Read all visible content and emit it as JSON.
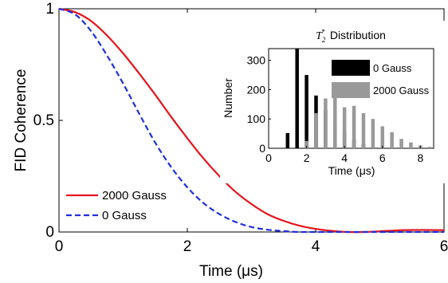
{
  "chart_data": [
    {
      "type": "line",
      "xlabel": "Time (μs)",
      "ylabel": "FID Coherence",
      "xlim": [
        0,
        6
      ],
      "ylim": [
        0,
        1
      ],
      "xticks": [
        "0",
        "2",
        "4",
        "6"
      ],
      "xtick_values": [
        0,
        2,
        4,
        6
      ],
      "yticks": [
        "0",
        "0.5",
        "1"
      ],
      "ytick_values": [
        0,
        0.5,
        1
      ],
      "grid": false,
      "legend_position": "bottom-left",
      "series": [
        {
          "name": "2000 Gauss",
          "color": "#e8141b",
          "style": "solid",
          "x": [
            0,
            0.25,
            0.5,
            0.75,
            1.0,
            1.25,
            1.5,
            1.75,
            2.0,
            2.25,
            2.5,
            2.75,
            3.0,
            3.25,
            3.5,
            3.75,
            4.0,
            4.25,
            4.5,
            4.75,
            5.0,
            5.25,
            5.5,
            5.75,
            6.0
          ],
          "values": [
            1.0,
            0.985,
            0.945,
            0.88,
            0.8,
            0.71,
            0.615,
            0.515,
            0.42,
            0.33,
            0.25,
            0.18,
            0.125,
            0.08,
            0.05,
            0.028,
            0.014,
            0.005,
            0.0,
            0.0,
            0.003,
            0.007,
            0.009,
            0.009,
            0.008
          ]
        },
        {
          "name": "0 Gauss",
          "color": "#1f2fe0",
          "style": "dashed",
          "x": [
            0,
            0.25,
            0.5,
            0.75,
            1.0,
            1.25,
            1.5,
            1.75,
            2.0,
            2.25,
            2.5,
            2.75,
            3.0,
            3.25,
            3.5,
            3.75,
            4.0,
            4.25,
            4.5,
            4.75,
            5.0,
            5.25,
            5.5,
            5.75,
            6.0
          ],
          "values": [
            1.0,
            0.975,
            0.9,
            0.79,
            0.665,
            0.53,
            0.4,
            0.29,
            0.2,
            0.13,
            0.08,
            0.045,
            0.022,
            0.01,
            0.004,
            0.0,
            0.0,
            0.0,
            0.0,
            0.0,
            0.0,
            0.0,
            0.0,
            0.0,
            0.0
          ]
        }
      ]
    },
    {
      "type": "bar",
      "title_math": "T",
      "title_sub": "2",
      "title_sup": "*",
      "title_text": "Distribution",
      "xlabel": "Time (μs)",
      "ylabel": "Number",
      "xlim": [
        0,
        8.7
      ],
      "ylim": [
        0,
        340
      ],
      "xticks": [
        "0",
        "2",
        "4",
        "6",
        "8"
      ],
      "xtick_values": [
        0,
        2,
        4,
        6,
        8
      ],
      "yticks": [
        "0",
        "100",
        "200",
        "300"
      ],
      "ytick_values": [
        0,
        100,
        200,
        300
      ],
      "legend_position": "top-right",
      "series": [
        {
          "name": "0 Gauss",
          "color": "#000000",
          "x": [
            1.0,
            1.5,
            2.0,
            2.5,
            3.0,
            3.5,
            4.0,
            4.5,
            5.0,
            5.5
          ],
          "values": [
            52,
            340,
            250,
            180,
            130,
            90,
            58,
            30,
            15,
            5
          ]
        },
        {
          "name": "2000 Gauss",
          "color": "#999999",
          "x": [
            2.0,
            2.5,
            3.0,
            3.5,
            4.0,
            4.5,
            5.0,
            5.5,
            6.0,
            6.5,
            7.0,
            7.5,
            8.0,
            8.5
          ],
          "values": [
            25,
            120,
            170,
            180,
            140,
            145,
            120,
            100,
            75,
            55,
            32,
            20,
            10,
            5
          ]
        }
      ]
    }
  ]
}
